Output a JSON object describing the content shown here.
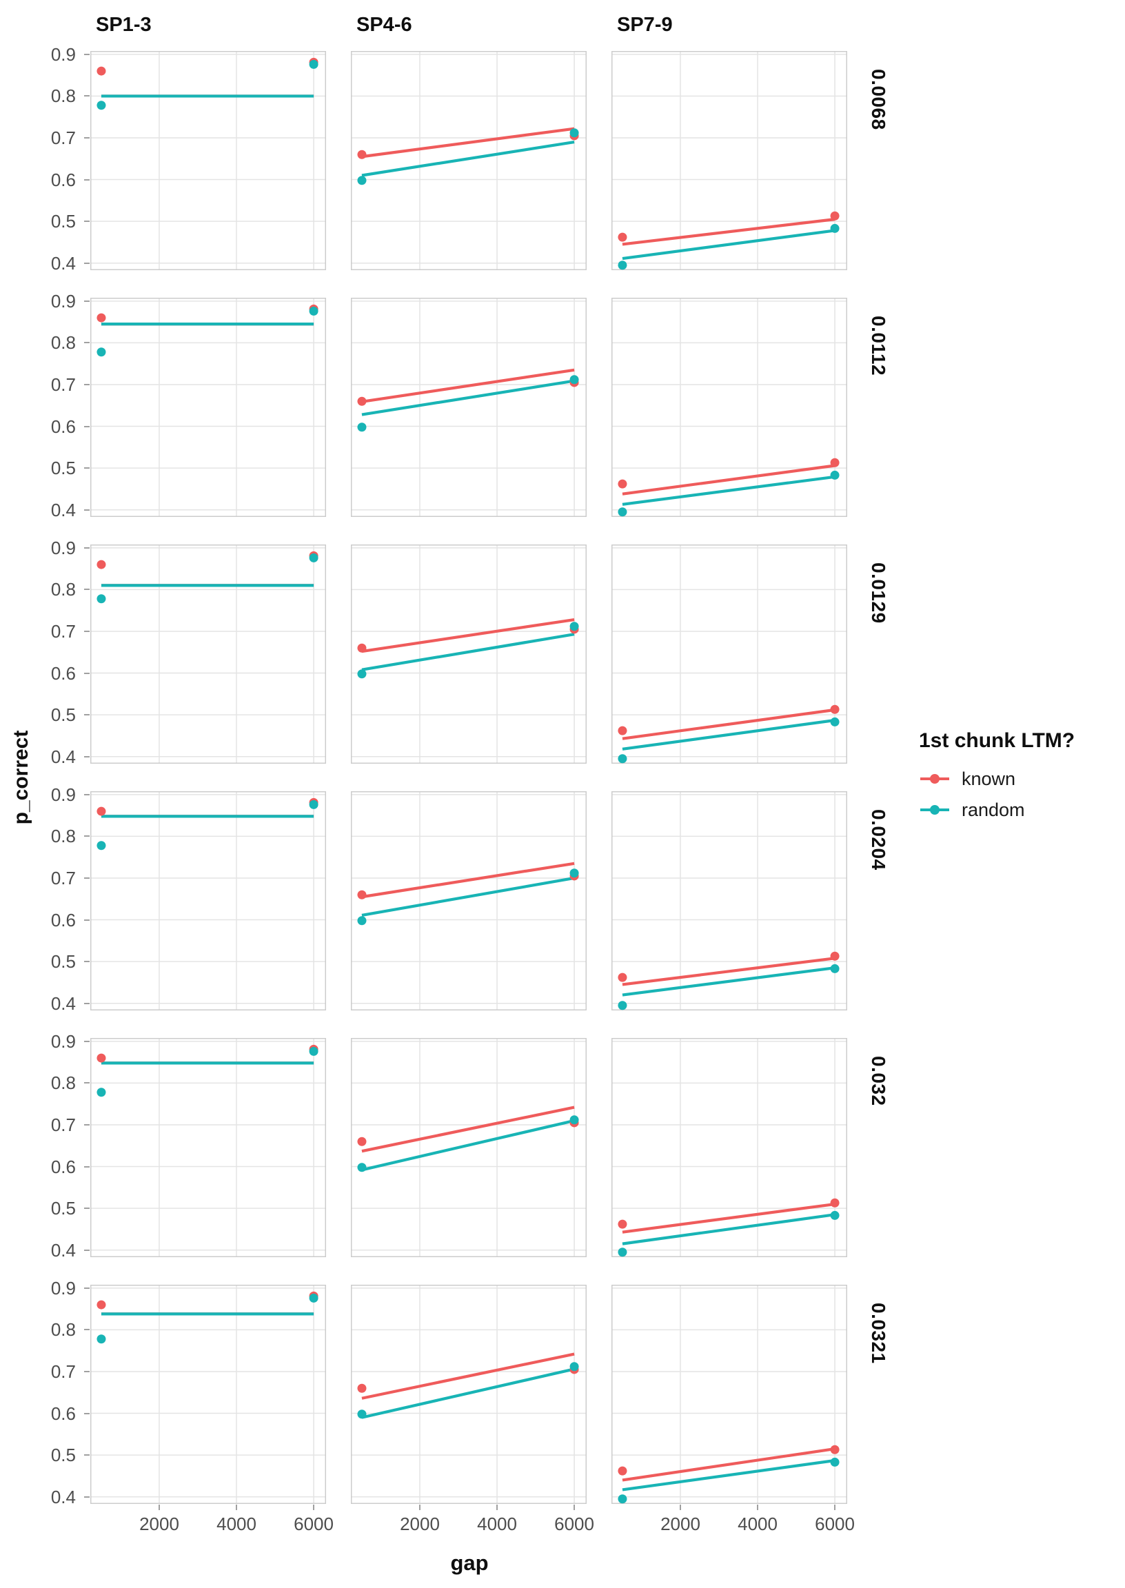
{
  "legend": {
    "title": "1st chunk LTM?"
  },
  "chart_data": {
    "type": "scatter+line",
    "title": "",
    "x": {
      "label": "gap",
      "ticks": [
        2000,
        4000,
        6000
      ],
      "domain": [
        215,
        6320
      ],
      "point_x": [
        500,
        6000
      ]
    },
    "y": {
      "label": "p_correct",
      "ticks": [
        0.4,
        0.5,
        0.6,
        0.7,
        0.8,
        0.9
      ],
      "domain": [
        0.383,
        0.908
      ]
    },
    "facets": {
      "cols": [
        "SP1-3",
        "SP4-6",
        "SP7-9"
      ],
      "rows": [
        "0.0068",
        "0.0112",
        "0.0129",
        "0.0204",
        "0.032",
        "0.0321"
      ]
    },
    "series": [
      {
        "name": "known",
        "color": "#EF5B5B"
      },
      {
        "name": "random",
        "color": "#18B4B5"
      }
    ],
    "grid_color": "#e4e4e4",
    "panel_border_color": "#cccccc",
    "observed_points": {
      "SP1-3": {
        "known": [
          0.86,
          0.881
        ],
        "random": [
          0.778,
          0.876
        ]
      },
      "SP4-6": {
        "known": [
          0.66,
          0.705
        ],
        "random": [
          0.598,
          0.712
        ]
      },
      "SP7-9": {
        "known": [
          0.462,
          0.513
        ],
        "random": [
          0.395,
          0.483
        ]
      }
    },
    "fit_lines": [
      {
        "row": "0.0068",
        "cells": [
          {
            "known": [
              0.8,
              0.8
            ],
            "random": [
              0.8,
              0.8
            ]
          },
          {
            "known": [
              0.655,
              0.722
            ],
            "random": [
              0.61,
              0.69
            ]
          },
          {
            "known": [
              0.445,
              0.505
            ],
            "random": [
              0.411,
              0.478
            ]
          }
        ]
      },
      {
        "row": "0.0112",
        "cells": [
          {
            "known": [
              0.845,
              0.845
            ],
            "random": [
              0.845,
              0.845
            ]
          },
          {
            "known": [
              0.659,
              0.735
            ],
            "random": [
              0.628,
              0.709
            ]
          },
          {
            "known": [
              0.438,
              0.506
            ],
            "random": [
              0.413,
              0.479
            ]
          }
        ]
      },
      {
        "row": "0.0129",
        "cells": [
          {
            "known": [
              0.81,
              0.81
            ],
            "random": [
              0.81,
              0.81
            ]
          },
          {
            "known": [
              0.652,
              0.728
            ],
            "random": [
              0.608,
              0.693
            ]
          },
          {
            "known": [
              0.443,
              0.512
            ],
            "random": [
              0.418,
              0.487
            ]
          }
        ]
      },
      {
        "row": "0.0204",
        "cells": [
          {
            "known": [
              0.848,
              0.848
            ],
            "random": [
              0.848,
              0.848
            ]
          },
          {
            "known": [
              0.655,
              0.735
            ],
            "random": [
              0.611,
              0.7
            ]
          },
          {
            "known": [
              0.445,
              0.508
            ],
            "random": [
              0.42,
              0.485
            ]
          }
        ]
      },
      {
        "row": "0.032",
        "cells": [
          {
            "known": [
              0.848,
              0.848
            ],
            "random": [
              0.848,
              0.848
            ]
          },
          {
            "known": [
              0.637,
              0.742
            ],
            "random": [
              0.592,
              0.71
            ]
          },
          {
            "known": [
              0.443,
              0.51
            ],
            "random": [
              0.415,
              0.485
            ]
          }
        ]
      },
      {
        "row": "0.0321",
        "cells": [
          {
            "known": [
              0.838,
              0.838
            ],
            "random": [
              0.838,
              0.838
            ]
          },
          {
            "known": [
              0.636,
              0.742
            ],
            "random": [
              0.59,
              0.706
            ]
          },
          {
            "known": [
              0.44,
              0.515
            ],
            "random": [
              0.417,
              0.487
            ]
          }
        ]
      }
    ]
  }
}
